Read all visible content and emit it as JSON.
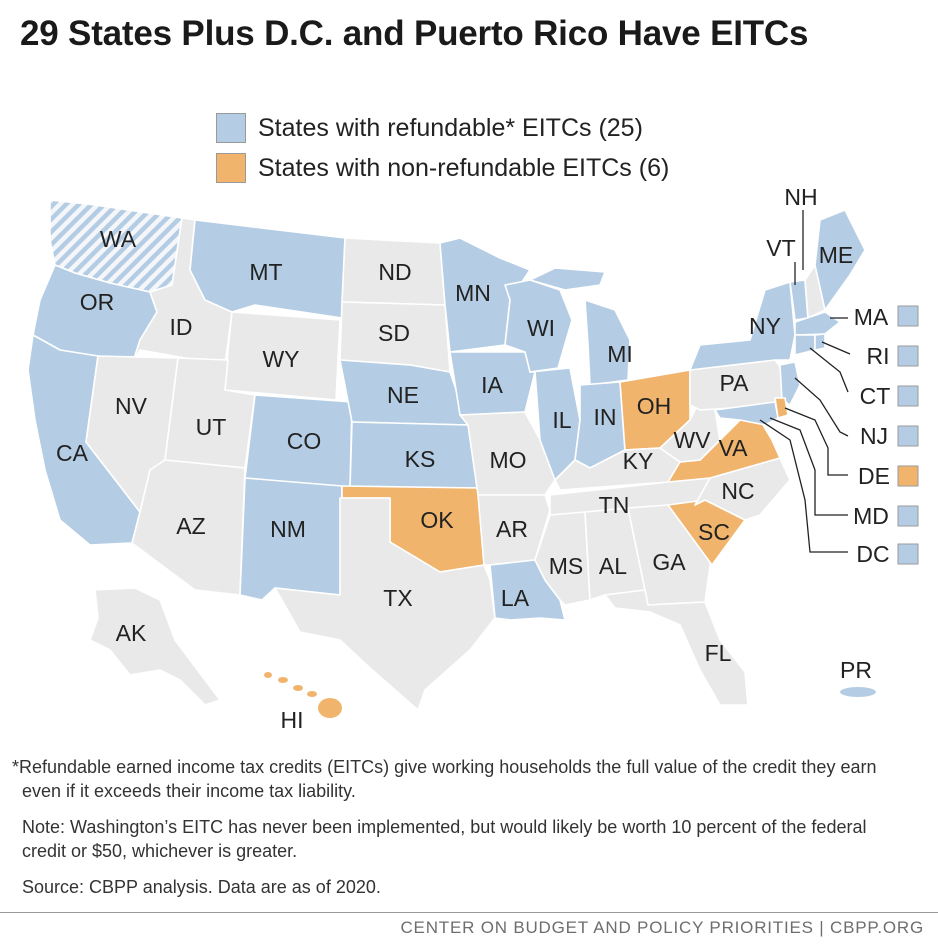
{
  "title": "29 States Plus D.C. and Puerto Rico Have EITCs",
  "legend": [
    {
      "key": "refundable",
      "label": "States with refundable* EITCs (25)",
      "color": "#b4cde4"
    },
    {
      "key": "nonrefundable",
      "label": "States with non-refundable EITCs (6)",
      "color": "#f0b46c"
    }
  ],
  "colors": {
    "none": "#e9e9e9",
    "outline": "#ffffff"
  },
  "states": [
    {
      "abbr": "WA",
      "status": "not implemented (hatched)"
    },
    {
      "abbr": "OR",
      "status": "refundable"
    },
    {
      "abbr": "CA",
      "status": "refundable"
    },
    {
      "abbr": "ID",
      "status": "none"
    },
    {
      "abbr": "NV",
      "status": "none"
    },
    {
      "abbr": "MT",
      "status": "refundable"
    },
    {
      "abbr": "WY",
      "status": "none"
    },
    {
      "abbr": "UT",
      "status": "none"
    },
    {
      "abbr": "AZ",
      "status": "none"
    },
    {
      "abbr": "CO",
      "status": "refundable"
    },
    {
      "abbr": "NM",
      "status": "refundable"
    },
    {
      "abbr": "ND",
      "status": "none"
    },
    {
      "abbr": "SD",
      "status": "none"
    },
    {
      "abbr": "NE",
      "status": "refundable"
    },
    {
      "abbr": "KS",
      "status": "refundable"
    },
    {
      "abbr": "OK",
      "status": "nonrefundable"
    },
    {
      "abbr": "TX",
      "status": "none"
    },
    {
      "abbr": "MN",
      "status": "refundable"
    },
    {
      "abbr": "IA",
      "status": "refundable"
    },
    {
      "abbr": "MO",
      "status": "none"
    },
    {
      "abbr": "AR",
      "status": "none"
    },
    {
      "abbr": "LA",
      "status": "refundable"
    },
    {
      "abbr": "WI",
      "status": "refundable"
    },
    {
      "abbr": "IL",
      "status": "refundable"
    },
    {
      "abbr": "MI",
      "status": "refundable"
    },
    {
      "abbr": "IN",
      "status": "refundable"
    },
    {
      "abbr": "OH",
      "status": "nonrefundable"
    },
    {
      "abbr": "KY",
      "status": "none"
    },
    {
      "abbr": "TN",
      "status": "none"
    },
    {
      "abbr": "MS",
      "status": "none"
    },
    {
      "abbr": "AL",
      "status": "none"
    },
    {
      "abbr": "GA",
      "status": "none"
    },
    {
      "abbr": "FL",
      "status": "none"
    },
    {
      "abbr": "SC",
      "status": "nonrefundable"
    },
    {
      "abbr": "NC",
      "status": "none"
    },
    {
      "abbr": "VA",
      "status": "nonrefundable"
    },
    {
      "abbr": "WV",
      "status": "none"
    },
    {
      "abbr": "PA",
      "status": "none"
    },
    {
      "abbr": "NY",
      "status": "refundable"
    },
    {
      "abbr": "VT",
      "status": "refundable"
    },
    {
      "abbr": "NH",
      "status": "none"
    },
    {
      "abbr": "ME",
      "status": "refundable"
    },
    {
      "abbr": "MA",
      "status": "refundable"
    },
    {
      "abbr": "RI",
      "status": "refundable"
    },
    {
      "abbr": "CT",
      "status": "refundable"
    },
    {
      "abbr": "NJ",
      "status": "refundable"
    },
    {
      "abbr": "DE",
      "status": "nonrefundable"
    },
    {
      "abbr": "MD",
      "status": "refundable"
    },
    {
      "abbr": "DC",
      "status": "refundable"
    },
    {
      "abbr": "AK",
      "status": "none"
    },
    {
      "abbr": "HI",
      "status": "nonrefundable"
    },
    {
      "abbr": "PR",
      "status": "refundable"
    }
  ],
  "notes": {
    "footnote": "*Refundable earned income tax credits (EITCs) give working households the full value of the credit they earn even if it exceeds their income tax liability.",
    "note": "Note: Washington’s EITC has never been implemented, but would likely be worth 10 percent of the federal credit or $50, whichever is greater.",
    "source": "Source: CBPP analysis. Data are as of 2020."
  },
  "footer": "CENTER ON BUDGET AND POLICY PRIORITIES | CBPP.ORG"
}
